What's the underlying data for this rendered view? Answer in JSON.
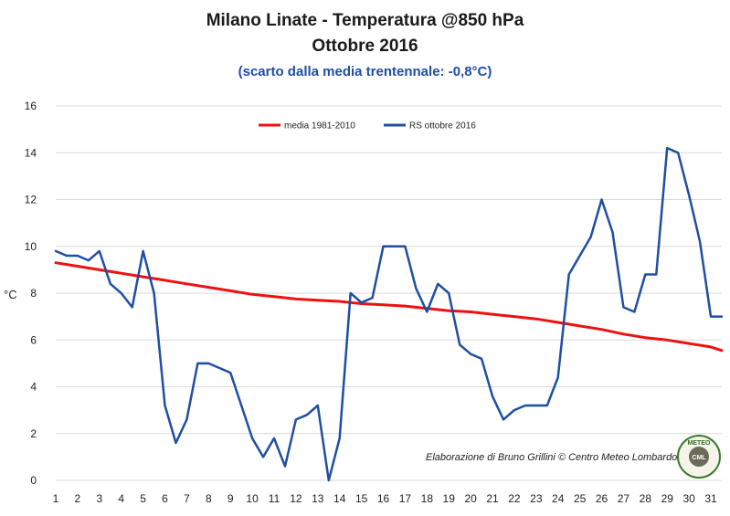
{
  "titles": {
    "line1": "Milano Linate - Temperatura @850 hPa",
    "line2": "Ottobre 2016",
    "line3": "(scarto dalla media trentennale: -0,8°C)"
  },
  "credit": "Elaborazione di Bruno Grillini  ©  Centro Meteo Lombardo",
  "logo": {
    "text_top": "METEO",
    "text_bottom": "CML"
  },
  "colors": {
    "media": "#ee1111",
    "rs": "#1f4ea3"
  },
  "chart_data": {
    "type": "line",
    "ylabel": "°C",
    "ylim": [
      0,
      16
    ],
    "yticks": [
      0,
      2,
      4,
      6,
      8,
      10,
      12,
      14,
      16
    ],
    "xlim": [
      1,
      31.5
    ],
    "xticks": [
      "1",
      "2",
      "3",
      "4",
      "5",
      "6",
      "7",
      "8",
      "9",
      "10",
      "11",
      "12",
      "13",
      "14",
      "15",
      "16",
      "17",
      "18",
      "19",
      "20",
      "21",
      "22",
      "23",
      "24",
      "25",
      "26",
      "27",
      "28",
      "29",
      "30",
      "31"
    ],
    "grid": true,
    "legend": "top-center",
    "series": [
      {
        "name": "media 1981-2010",
        "color": "#ee1111",
        "x": [
          1,
          2,
          3,
          4,
          5,
          6,
          7,
          8,
          9,
          10,
          11,
          12,
          13,
          14,
          15,
          16,
          17,
          18,
          19,
          20,
          21,
          22,
          23,
          24,
          25,
          26,
          27,
          28,
          29,
          30,
          31,
          31.5
        ],
        "y": [
          9.3,
          9.15,
          9.0,
          8.85,
          8.7,
          8.55,
          8.4,
          8.25,
          8.1,
          7.95,
          7.85,
          7.75,
          7.7,
          7.65,
          7.55,
          7.5,
          7.45,
          7.35,
          7.25,
          7.2,
          7.1,
          7.0,
          6.9,
          6.75,
          6.6,
          6.45,
          6.25,
          6.1,
          6.0,
          5.85,
          5.7,
          5.55
        ]
      },
      {
        "name": "RS ottobre 2016",
        "color": "#1f4ea3",
        "x": [
          1,
          1.5,
          2,
          2.5,
          3,
          3.5,
          4,
          4.5,
          5,
          5.5,
          6,
          6.5,
          7,
          7.5,
          8,
          8.5,
          9,
          9.5,
          10,
          10.5,
          11,
          11.5,
          12,
          12.5,
          13,
          13.5,
          14,
          14.5,
          15,
          15.5,
          16,
          16.5,
          17,
          17.5,
          18,
          18.5,
          19,
          19.5,
          20,
          20.5,
          21,
          21.5,
          22,
          22.5,
          23,
          23.5,
          24,
          24.5,
          25,
          25.5,
          26,
          26.5,
          27,
          27.5,
          28,
          28.5,
          29,
          29.5,
          30,
          30.5,
          31,
          31.5
        ],
        "y": [
          9.8,
          9.6,
          9.6,
          9.4,
          9.8,
          8.4,
          8.0,
          7.4,
          9.8,
          8.0,
          3.2,
          1.6,
          2.6,
          5.0,
          5.0,
          4.8,
          4.6,
          3.2,
          1.8,
          1.0,
          1.8,
          0.6,
          2.6,
          2.8,
          3.2,
          0.0,
          1.8,
          8.0,
          7.6,
          7.8,
          10.0,
          10.0,
          10.0,
          8.2,
          7.2,
          8.4,
          8.0,
          5.8,
          5.4,
          5.2,
          3.6,
          2.6,
          3.0,
          3.2,
          3.2,
          3.2,
          4.4,
          8.8,
          9.6,
          10.4,
          12.0,
          10.6,
          7.4,
          7.2,
          8.8,
          8.8,
          14.2,
          14.0,
          12.2,
          10.2,
          7.0,
          7.0
        ]
      }
    ]
  }
}
